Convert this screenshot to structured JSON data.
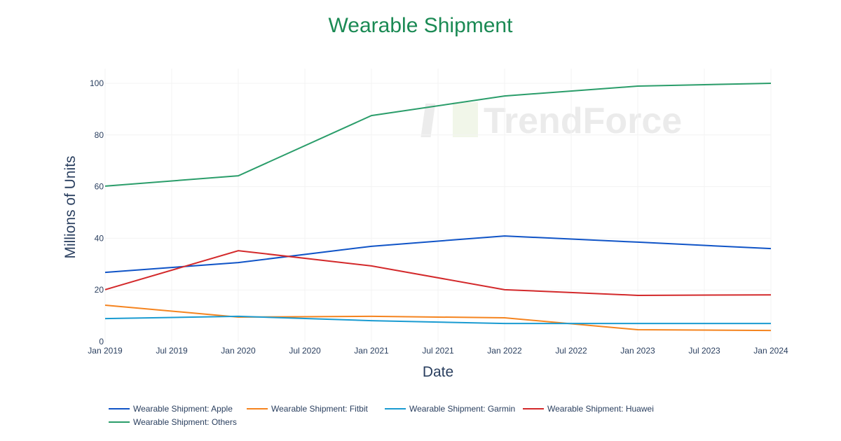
{
  "chart_data": {
    "type": "line",
    "title": "Wearable Shipment",
    "xlabel": "Date",
    "ylabel": "Millions of Units",
    "x": [
      "Jan 2019",
      "Jan 2020",
      "Jan 2021",
      "Jan 2022",
      "Jan 2023",
      "Jan 2024"
    ],
    "x_ticks": [
      "Jan 2019",
      "Jul 2019",
      "Jan 2020",
      "Jul 2020",
      "Jan 2021",
      "Jul 2021",
      "Jan 2022",
      "Jul 2022",
      "Jan 2023",
      "Jul 2023",
      "Jan 2024"
    ],
    "y_ticks": [
      0,
      20,
      40,
      60,
      80,
      100
    ],
    "ylim": [
      0,
      105
    ],
    "grid": true,
    "legend_position": "bottom",
    "watermark": "TrendForce",
    "series": [
      {
        "name": "Wearable Shipment: Apple",
        "color": "#1054c7",
        "values": [
          26.8,
          30.6,
          36.9,
          40.9,
          38.5,
          36.0
        ]
      },
      {
        "name": "Wearable Shipment: Fitbit",
        "color": "#f5841f",
        "values": [
          14.1,
          9.5,
          9.8,
          9.2,
          4.6,
          4.3
        ]
      },
      {
        "name": "Wearable Shipment: Garmin",
        "color": "#1a9bd1",
        "values": [
          8.9,
          9.8,
          8.1,
          7.0,
          7.0,
          7.0
        ]
      },
      {
        "name": "Wearable Shipment: Huawei",
        "color": "#d3292b",
        "values": [
          20.1,
          35.2,
          29.3,
          20.1,
          17.9,
          18.1
        ]
      },
      {
        "name": "Wearable Shipment: Others",
        "color": "#2a9d6a",
        "values": [
          60.2,
          64.2,
          87.5,
          95.1,
          98.9,
          100.0
        ]
      }
    ]
  }
}
